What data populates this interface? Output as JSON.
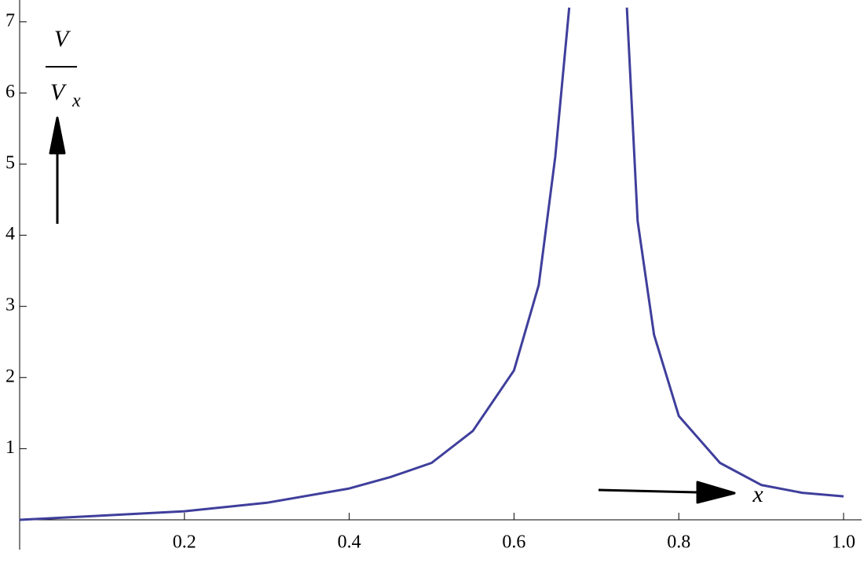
{
  "chart_data": {
    "type": "line",
    "x": [
      0,
      0.1,
      0.2,
      0.3,
      0.4,
      0.45,
      0.5,
      0.55,
      0.6,
      0.63,
      0.65,
      0.667,
      0.7,
      0.737,
      0.75,
      0.77,
      0.8,
      0.85,
      0.9,
      0.95,
      1.0
    ],
    "series": [
      {
        "color": "#3f3f9c",
        "values": [
          0,
          0.06,
          0.12,
          0.24,
          0.44,
          0.6,
          0.8,
          1.25,
          2.1,
          3.3,
          5.1,
          7.2,
          null,
          7.2,
          4.2,
          2.6,
          1.46,
          0.8,
          0.49,
          0.38,
          0.33
        ]
      }
    ],
    "xlim": [
      0,
      1.022
    ],
    "ylim": [
      0,
      7.3
    ],
    "xticks": [
      0.2,
      0.4,
      0.6,
      0.8,
      {
        "value": 1,
        "label": "1.0"
      }
    ],
    "yticks": [
      1,
      2,
      3,
      4,
      5,
      6,
      7
    ],
    "ylabel_numerator": "V",
    "ylabel_denominator": "V",
    "ylabel_subscript": "x",
    "xlabel": "x"
  }
}
